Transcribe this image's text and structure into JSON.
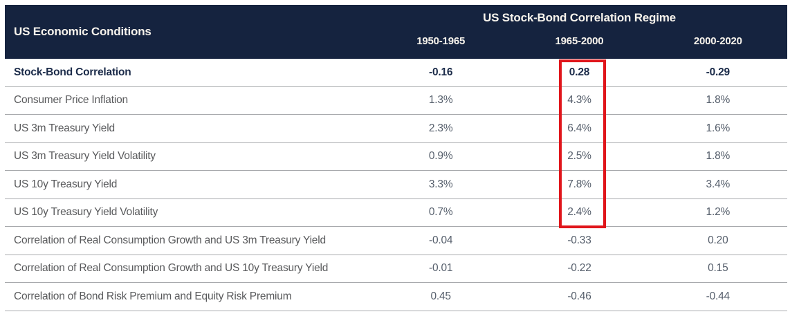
{
  "colors": {
    "header_bg": "#15233F",
    "header_text": "#F7F3EC",
    "highlight_border": "#E0151B",
    "row_label_text": "#58595B",
    "value_text": "#555E6B",
    "bold_row_text": "#1B2B49",
    "separator": "#A8AAAD"
  },
  "chart_data": {
    "type": "table",
    "title": "US Stock-Bond Correlation Regime",
    "row_header": "US Economic Conditions",
    "columns": [
      "1950-1965",
      "1965-2000",
      "2000-2020"
    ],
    "rows": [
      {
        "label": "Stock-Bond Correlation",
        "bold": true,
        "values": [
          "-0.16",
          "0.28",
          "-0.29"
        ]
      },
      {
        "label": "Consumer Price Inflation",
        "bold": false,
        "values": [
          "1.3%",
          "4.3%",
          "1.8%"
        ]
      },
      {
        "label": "US 3m Treasury Yield",
        "bold": false,
        "values": [
          "2.3%",
          "6.4%",
          "1.6%"
        ]
      },
      {
        "label": "US 3m Treasury Yield Volatility",
        "bold": false,
        "values": [
          "0.9%",
          "2.5%",
          "1.8%"
        ]
      },
      {
        "label": "US 10y Treasury Yield",
        "bold": false,
        "values": [
          "3.3%",
          "7.8%",
          "3.4%"
        ]
      },
      {
        "label": "US 10y Treasury Yield Volatility",
        "bold": false,
        "values": [
          "0.7%",
          "2.4%",
          "1.2%"
        ]
      },
      {
        "label": "Correlation of Real Consumption Growth and US 3m Treasury Yield",
        "bold": false,
        "values": [
          "-0.04",
          "-0.33",
          "0.20"
        ]
      },
      {
        "label": "Correlation of Real Consumption Growth and US 10y Treasury Yield",
        "bold": false,
        "values": [
          "-0.01",
          "-0.22",
          "0.15"
        ]
      },
      {
        "label": "Correlation of Bond Risk Premium and Equity Risk Premium",
        "bold": false,
        "values": [
          "0.45",
          "-0.46",
          "-0.44"
        ]
      }
    ],
    "highlight": {
      "column": "1965-2000",
      "column_index": 1,
      "first_row_index": 0,
      "last_row_index": 5,
      "shape": "red-rectangle"
    },
    "layout": {
      "grid": "horizontal row separators only",
      "legend_position": "none"
    }
  }
}
